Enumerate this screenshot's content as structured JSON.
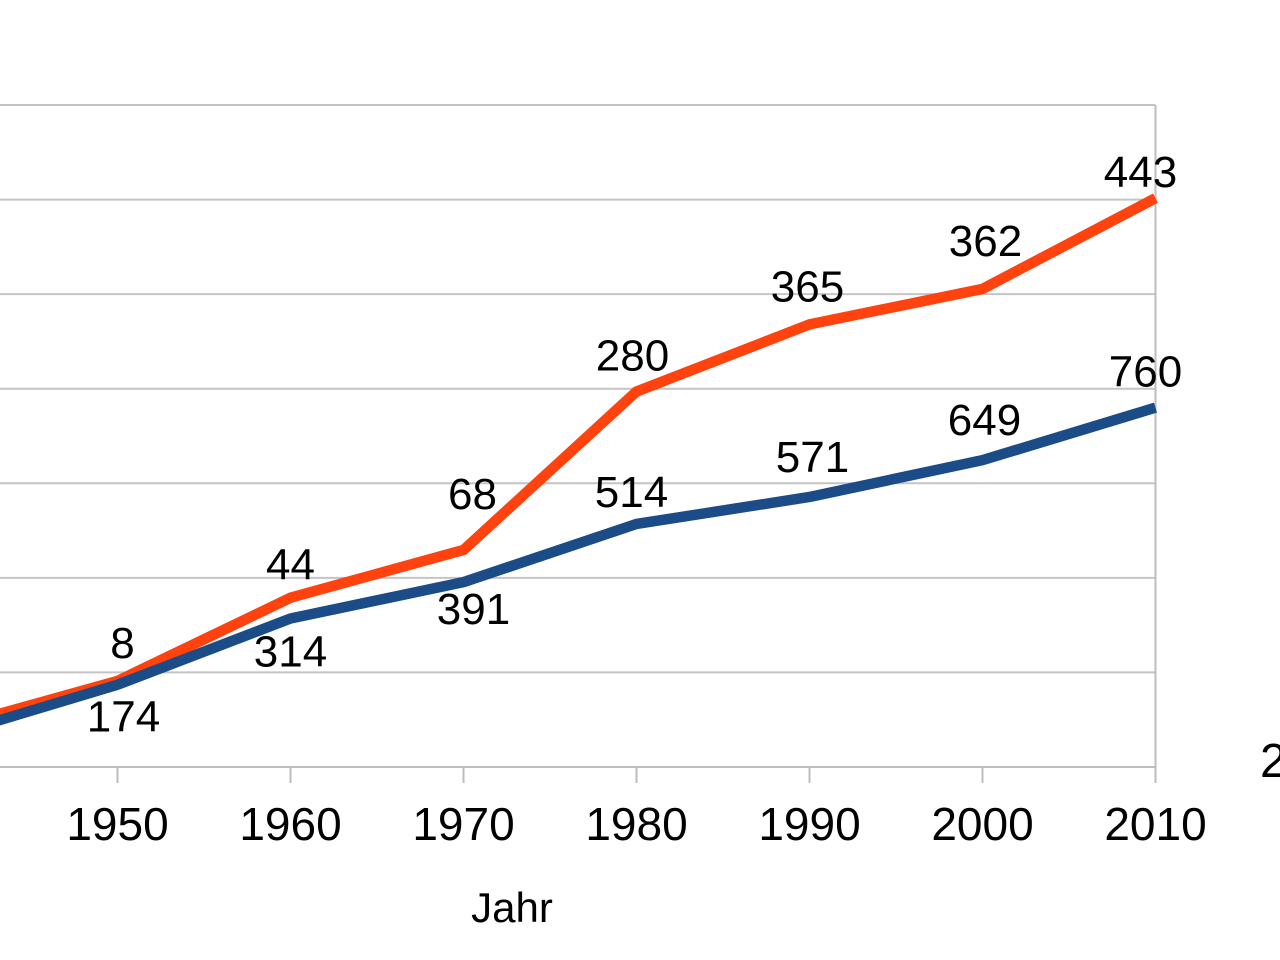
{
  "page": {
    "background": "#FFFFFF",
    "right_edge_cutoff_text": "2"
  },
  "chart_data": {
    "type": "line",
    "subtype": "stacked",
    "title": "",
    "xlabel": "Jahr",
    "ylabel": "",
    "categories": [
      "1950",
      "1960",
      "1970",
      "1980",
      "1990",
      "2000",
      "2010"
    ],
    "series": [
      {
        "name": "blue-series",
        "color": "#1C4C87",
        "values": [
          174,
          314,
          391,
          514,
          571,
          649,
          760
        ],
        "data_labels": [
          "174",
          "314",
          "391",
          "514",
          "571",
          "649",
          "760"
        ]
      },
      {
        "name": "red-series",
        "color": "#FF420E",
        "values": [
          8,
          44,
          68,
          280,
          365,
          362,
          443
        ],
        "data_labels": [
          "8",
          "44",
          "68",
          "280",
          "365",
          "362",
          "443"
        ],
        "stacked_on": "blue-series"
      }
    ],
    "y_axis": {
      "min": 0,
      "max": 1400,
      "step": 200,
      "labels_visible": false
    },
    "x_axis": {
      "labels_visible": true
    },
    "gridlines": {
      "horizontal": true,
      "color": "#C4C4C4"
    },
    "axis_color": "#BDBDBD",
    "text_color": "#000000",
    "legend_position": "none",
    "crop": {
      "note": "chart cropped: left portion (y-axis labels) and right portion cut off at image edges",
      "left_edge_estimated_prior_point": {
        "blue": 64,
        "red_stacked_total": 80
      }
    }
  }
}
